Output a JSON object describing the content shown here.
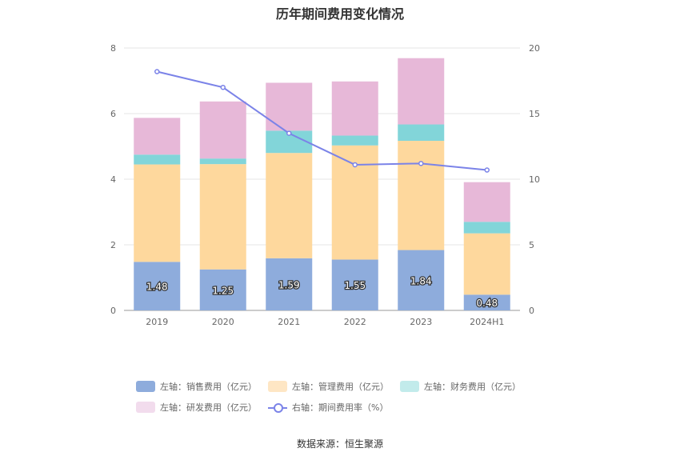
{
  "chart_data": {
    "type": "bar",
    "title": "历年期间费用变化情况",
    "categories": [
      "2019",
      "2020",
      "2021",
      "2022",
      "2023",
      "2024H1"
    ],
    "stacked": true,
    "series": [
      {
        "name": "左轴：销售费用（亿元）",
        "axis": "left",
        "type": "bar",
        "color": "#8eacdc",
        "values": [
          1.48,
          1.25,
          1.59,
          1.55,
          1.84,
          0.48
        ],
        "labels": [
          "1.48",
          "1.25",
          "1.59",
          "1.55",
          "1.84",
          "0.48"
        ]
      },
      {
        "name": "左轴：管理费用（亿元）",
        "axis": "left",
        "type": "bar",
        "color": "#fed89d",
        "values": [
          2.97,
          3.21,
          3.21,
          3.48,
          3.33,
          1.87
        ]
      },
      {
        "name": "左轴：财务费用（亿元）",
        "axis": "left",
        "type": "bar",
        "color": "#82d5d9",
        "values": [
          0.3,
          0.17,
          0.68,
          0.3,
          0.5,
          0.35
        ]
      },
      {
        "name": "左轴：研发费用（亿元）",
        "axis": "left",
        "type": "bar",
        "color": "#e7b8d8",
        "values": [
          1.12,
          1.74,
          1.46,
          1.65,
          2.02,
          1.21
        ]
      },
      {
        "name": "右轴：期间费用率（%）",
        "axis": "right",
        "type": "line",
        "color": "#7b83e8",
        "values": [
          18.2,
          17.0,
          13.5,
          11.1,
          11.2,
          10.7
        ]
      }
    ],
    "left_axis": {
      "ylim": [
        0,
        8
      ],
      "ticks": [
        "0",
        "2",
        "4",
        "6",
        "8"
      ]
    },
    "right_axis": {
      "ylim": [
        0,
        20
      ],
      "ticks": [
        "0",
        "5",
        "10",
        "15",
        "20"
      ]
    },
    "grid": true,
    "legend_position": "bottom"
  },
  "legend": {
    "row1": [
      {
        "label": "左轴：销售费用（亿元）",
        "color": "#8eacdc"
      },
      {
        "label": "左轴：管理费用（亿元）",
        "color": "#fee6c4"
      },
      {
        "label": "左轴：财务费用（亿元）",
        "color": "#c2ebeb"
      }
    ],
    "row2": [
      {
        "label": "左轴：研发费用（亿元）",
        "color": "#f2dced"
      },
      {
        "label": "右轴：期间费用率（%）",
        "color": "#7b83e8"
      }
    ]
  },
  "source": "数据来源：恒生聚源"
}
